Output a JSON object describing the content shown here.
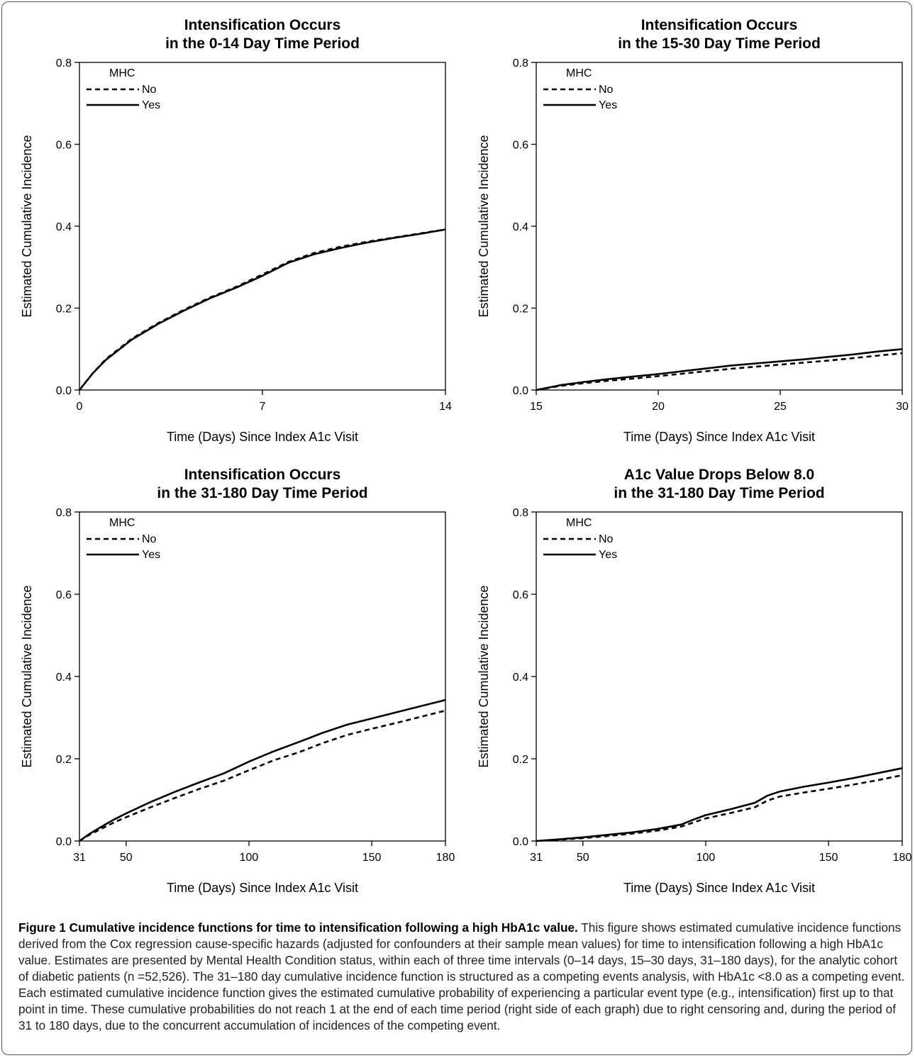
{
  "chart_data": [
    {
      "type": "line",
      "title_line1": "Intensification Occurs",
      "title_line2": "in the 0-14 Day Time Period",
      "xlabel": "Time (Days) Since Index A1c Visit",
      "ylabel": "Estimated Cumulative Incidence",
      "xlim": [
        0,
        14
      ],
      "ylim": [
        0,
        0.8
      ],
      "xticks": [
        0,
        7,
        14
      ],
      "yticks": [
        0.0,
        0.2,
        0.4,
        0.6,
        0.8
      ],
      "legend": {
        "title": "MHC",
        "position": "top-left"
      },
      "series": [
        {
          "name": "No",
          "style": "dashed",
          "x": [
            0,
            0.5,
            1,
            2,
            3,
            4,
            5,
            6,
            7,
            8,
            9,
            10,
            11,
            12,
            13,
            14
          ],
          "y": [
            0.0,
            0.04,
            0.075,
            0.125,
            0.163,
            0.196,
            0.226,
            0.252,
            0.282,
            0.313,
            0.335,
            0.35,
            0.362,
            0.372,
            0.382,
            0.392
          ]
        },
        {
          "name": "Yes",
          "style": "solid",
          "x": [
            0,
            0.5,
            1,
            2,
            3,
            4,
            5,
            6,
            7,
            8,
            9,
            10,
            11,
            12,
            13,
            14
          ],
          "y": [
            0.0,
            0.04,
            0.073,
            0.123,
            0.161,
            0.194,
            0.224,
            0.25,
            0.279,
            0.311,
            0.332,
            0.347,
            0.36,
            0.371,
            0.381,
            0.392
          ]
        }
      ]
    },
    {
      "type": "line",
      "title_line1": "Intensification Occurs",
      "title_line2": "in the 15-30 Day Time Period",
      "xlabel": "Time (Days) Since Index A1c Visit",
      "ylabel": "Estimated Cumulative Incidence",
      "xlim": [
        15,
        30
      ],
      "ylim": [
        0,
        0.8
      ],
      "xticks": [
        15,
        20,
        25,
        30
      ],
      "yticks": [
        0.0,
        0.2,
        0.4,
        0.6,
        0.8
      ],
      "legend": {
        "title": "MHC",
        "position": "top-left"
      },
      "series": [
        {
          "name": "No",
          "style": "dashed",
          "x": [
            15,
            16,
            17,
            18,
            19,
            20,
            21,
            22,
            23,
            24,
            25,
            26,
            27,
            28,
            29,
            30
          ],
          "y": [
            0.0,
            0.01,
            0.017,
            0.023,
            0.028,
            0.034,
            0.04,
            0.046,
            0.052,
            0.057,
            0.062,
            0.067,
            0.072,
            0.078,
            0.084,
            0.09
          ]
        },
        {
          "name": "Yes",
          "style": "solid",
          "x": [
            15,
            16,
            17,
            18,
            19,
            20,
            21,
            22,
            23,
            24,
            25,
            26,
            27,
            28,
            29,
            30
          ],
          "y": [
            0.0,
            0.012,
            0.02,
            0.027,
            0.033,
            0.039,
            0.046,
            0.053,
            0.06,
            0.065,
            0.07,
            0.075,
            0.081,
            0.087,
            0.094,
            0.1
          ]
        }
      ]
    },
    {
      "type": "line",
      "title_line1": "Intensification Occurs",
      "title_line2": "in the 31-180 Day Time Period",
      "xlabel": "Time (Days) Since Index A1c Visit",
      "ylabel": "Estimated Cumulative Incidence",
      "xlim": [
        31,
        180
      ],
      "ylim": [
        0,
        0.8
      ],
      "xticks": [
        31,
        50,
        100,
        150,
        180
      ],
      "yticks": [
        0.0,
        0.2,
        0.4,
        0.6,
        0.8
      ],
      "legend": {
        "title": "MHC",
        "position": "top-left"
      },
      "series": [
        {
          "name": "No",
          "style": "dashed",
          "x": [
            31,
            35,
            40,
            45,
            50,
            60,
            70,
            80,
            90,
            100,
            110,
            120,
            130,
            140,
            150,
            160,
            170,
            180
          ],
          "y": [
            0.0,
            0.015,
            0.03,
            0.045,
            0.058,
            0.082,
            0.105,
            0.127,
            0.147,
            0.172,
            0.196,
            0.215,
            0.238,
            0.258,
            0.273,
            0.287,
            0.302,
            0.317
          ]
        },
        {
          "name": "Yes",
          "style": "solid",
          "x": [
            31,
            35,
            40,
            45,
            50,
            60,
            70,
            80,
            90,
            100,
            110,
            120,
            130,
            140,
            150,
            160,
            170,
            180
          ],
          "y": [
            0.0,
            0.017,
            0.035,
            0.052,
            0.067,
            0.095,
            0.12,
            0.143,
            0.165,
            0.193,
            0.218,
            0.24,
            0.263,
            0.283,
            0.298,
            0.313,
            0.328,
            0.343
          ]
        }
      ]
    },
    {
      "type": "line",
      "title_line1": "A1c Value Drops Below 8.0",
      "title_line2": "in the 31-180 Day Time Period",
      "xlabel": "Time (Days) Since Index A1c Visit",
      "ylabel": "Estimated Cumulative Incidence",
      "xlim": [
        31,
        180
      ],
      "ylim": [
        0,
        0.8
      ],
      "xticks": [
        31,
        50,
        100,
        150,
        180
      ],
      "yticks": [
        0.0,
        0.2,
        0.4,
        0.6,
        0.8
      ],
      "legend": {
        "title": "MHC",
        "position": "top-left"
      },
      "series": [
        {
          "name": "No",
          "style": "dashed",
          "x": [
            31,
            40,
            50,
            60,
            70,
            80,
            90,
            95,
            100,
            110,
            120,
            125,
            130,
            140,
            150,
            160,
            170,
            180
          ],
          "y": [
            0.0,
            0.003,
            0.007,
            0.012,
            0.018,
            0.025,
            0.035,
            0.045,
            0.055,
            0.068,
            0.082,
            0.098,
            0.108,
            0.118,
            0.127,
            0.137,
            0.148,
            0.16
          ]
        },
        {
          "name": "Yes",
          "style": "solid",
          "x": [
            31,
            40,
            50,
            60,
            70,
            80,
            90,
            95,
            100,
            110,
            120,
            125,
            130,
            140,
            150,
            160,
            170,
            180
          ],
          "y": [
            0.0,
            0.004,
            0.009,
            0.015,
            0.021,
            0.029,
            0.04,
            0.052,
            0.063,
            0.077,
            0.093,
            0.11,
            0.12,
            0.132,
            0.142,
            0.153,
            0.165,
            0.177
          ]
        }
      ]
    }
  ],
  "caption": {
    "figure_label": "Figure 1 Cumulative incidence functions for time to intensification following a high HbA1c value.",
    "text": " This figure shows estimated cumulative incidence functions derived from the Cox regression cause-specific hazards (adjusted for confounders at their sample mean values) for time to intensification following a high HbA1c value. Estimates are presented by Mental Health Condition status, within each of three time intervals (0–14 days, 15–30 days, 31–180 days), for the analytic cohort of diabetic patients (n =52,526). The 31–180 day cumulative incidence function is structured as a competing events analysis, with HbA1c <8.0 as a competing event. Each estimated cumulative incidence function gives the estimated cumulative probability of experiencing a particular event type (e.g., intensification) first up to that point in time. These cumulative probabilities do not reach 1 at the end of each time period (right side of each graph) due to right censoring and, during the period of 31 to 180 days, due to the concurrent accumulation of incidences of the competing event."
  }
}
